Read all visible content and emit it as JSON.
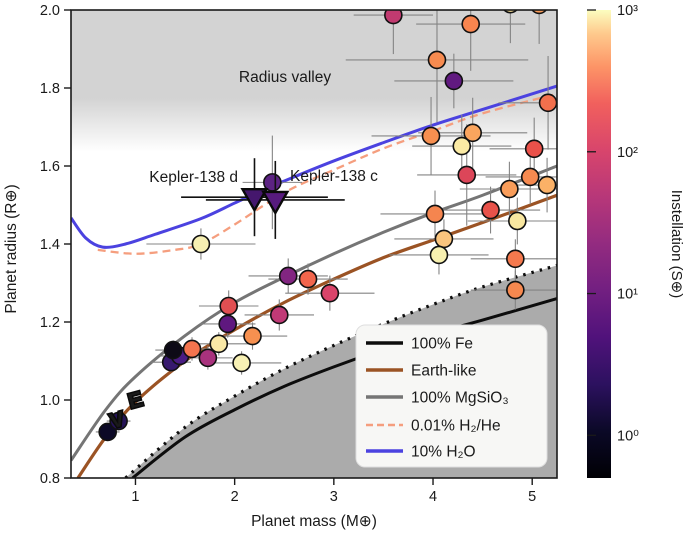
{
  "chart_data": {
    "type": "scatter",
    "title": "",
    "xlabel": "Planet mass (M⊕)",
    "ylabel": "Planet radius (R⊕)",
    "xlim": [
      0.35,
      5.25
    ],
    "ylim": [
      0.8,
      2.0
    ],
    "x_ticks": [
      1,
      2,
      3,
      4,
      5
    ],
    "x_tick_labels": [
      "1",
      "2",
      "3",
      "4",
      "5"
    ],
    "y_ticks": [
      0.8,
      1.0,
      1.2,
      1.4,
      1.6,
      1.8,
      2.0
    ],
    "y_tick_labels": [
      "0.8",
      "1.0",
      "1.2",
      "1.4",
      "1.6",
      "1.8",
      "2.0"
    ],
    "grid": false,
    "annotations": [
      {
        "text": "Radius valley",
        "x": 2.5,
        "y": 1.81,
        "color": "#9e9e9e"
      },
      {
        "text": "Kepler-138 d",
        "x": 2.05,
        "y": 1.555,
        "color": "#111111"
      },
      {
        "text": "Kepler-138 c",
        "x": 2.55,
        "y": 1.555,
        "color": "#111111"
      }
    ],
    "radius_valley_band": {
      "r_top": 2.0,
      "r_solid_until": 1.72,
      "r_fade_to": 1.64,
      "color": "#d3d3d3"
    },
    "shaded_forbidden_region": {
      "note": "gray region below the dotted curve",
      "color": "#ababab"
    },
    "curves": [
      {
        "name": "100% Fe",
        "color": "#0d0d0d",
        "style": "solid",
        "width": 3,
        "points": [
          [
            0.97,
            0.8
          ],
          [
            1.5,
            0.905
          ],
          [
            2.0,
            0.975
          ],
          [
            2.5,
            1.035
          ],
          [
            3.0,
            1.085
          ],
          [
            3.5,
            1.13
          ],
          [
            4.0,
            1.17
          ],
          [
            4.5,
            1.205
          ],
          [
            5.25,
            1.26
          ]
        ]
      },
      {
        "name": "",
        "color": "#0d0d0d",
        "style": "dotted",
        "width": 3.2,
        "points": [
          [
            0.9,
            0.8
          ],
          [
            1.5,
            0.93
          ],
          [
            2.0,
            1.01
          ],
          [
            2.5,
            1.08
          ],
          [
            3.0,
            1.14
          ],
          [
            3.5,
            1.195
          ],
          [
            4.0,
            1.245
          ],
          [
            4.5,
            1.29
          ],
          [
            5.25,
            1.345
          ]
        ]
      },
      {
        "name": "100% MgSiO₃",
        "color": "#757575",
        "style": "solid",
        "width": 3,
        "points": [
          [
            0.35,
            0.845
          ],
          [
            0.7,
            0.975
          ],
          [
            1.0,
            1.06
          ],
          [
            1.5,
            1.165
          ],
          [
            2.0,
            1.25
          ],
          [
            2.5,
            1.315
          ],
          [
            3.0,
            1.375
          ],
          [
            3.5,
            1.43
          ],
          [
            4.0,
            1.48
          ],
          [
            4.5,
            1.525
          ],
          [
            5.25,
            1.6
          ]
        ]
      },
      {
        "name": "Earth-like",
        "color": "#9b5324",
        "style": "solid",
        "width": 3.2,
        "points": [
          [
            0.42,
            0.8
          ],
          [
            0.7,
            0.905
          ],
          [
            1.0,
            0.995
          ],
          [
            1.5,
            1.1
          ],
          [
            2.0,
            1.18
          ],
          [
            2.5,
            1.25
          ],
          [
            3.0,
            1.31
          ],
          [
            3.5,
            1.365
          ],
          [
            4.0,
            1.41
          ],
          [
            4.5,
            1.455
          ],
          [
            5.25,
            1.525
          ]
        ]
      },
      {
        "name": "0.01% H₂/He",
        "color": "#f59e7e",
        "style": "dashed",
        "width": 2.3,
        "points": [
          [
            0.62,
            1.385
          ],
          [
            1.0,
            1.375
          ],
          [
            1.4,
            1.385
          ],
          [
            1.66,
            1.4
          ],
          [
            2.0,
            1.45
          ],
          [
            2.3,
            1.5
          ],
          [
            2.6,
            1.545
          ],
          [
            3.0,
            1.59
          ],
          [
            3.5,
            1.645
          ],
          [
            4.0,
            1.69
          ],
          [
            4.5,
            1.735
          ],
          [
            5.25,
            1.785
          ]
        ]
      },
      {
        "name": "10% H₂O",
        "color": "#4b42e0",
        "style": "solid",
        "width": 3,
        "points": [
          [
            0.35,
            1.467
          ],
          [
            0.5,
            1.415
          ],
          [
            0.67,
            1.392
          ],
          [
            0.9,
            1.4
          ],
          [
            1.2,
            1.425
          ],
          [
            1.66,
            1.465
          ],
          [
            2.0,
            1.505
          ],
          [
            2.3,
            1.54
          ],
          [
            2.6,
            1.572
          ],
          [
            3.0,
            1.613
          ],
          [
            3.5,
            1.66
          ],
          [
            4.0,
            1.705
          ],
          [
            4.5,
            1.745
          ],
          [
            5.25,
            1.805
          ]
        ]
      }
    ],
    "legend": {
      "position": "lower right",
      "bg": "#f7f7f5",
      "items": [
        {
          "label": "100% Fe",
          "color": "#0d0d0d",
          "style": "solid"
        },
        {
          "label": "Earth-like",
          "color": "#9b5324",
          "style": "solid"
        },
        {
          "label": "100% MgSiO₃",
          "color": "#757575",
          "style": "solid"
        },
        {
          "label": "0.01% H₂/He",
          "color": "#f59e7e",
          "style": "dashed"
        },
        {
          "label": "10% H₂O",
          "color": "#4b42e0",
          "style": "solid"
        }
      ]
    },
    "points": [
      {
        "m": 0.72,
        "r": 0.918,
        "color": "#0c0926",
        "s_approx": 1,
        "xe": 0.12,
        "ye": 0.02
      },
      {
        "m": 0.83,
        "r": 0.946,
        "color": "#251357",
        "s_approx": 2,
        "xe": 0.12,
        "ye": 0.02
      },
      {
        "m": 1.36,
        "r": 1.097,
        "color": "#37196e",
        "s_approx": 4,
        "xe": 0.2,
        "ye": 0.025
      },
      {
        "m": 1.45,
        "r": 1.113,
        "color": "#4a1c82",
        "s_approx": 6,
        "xe": 0.2,
        "ye": 0.025
      },
      {
        "m": 1.38,
        "r": 1.128,
        "color": "#0d0a16",
        "s_approx": 1,
        "xe": 0.18,
        "ye": 0.025
      },
      {
        "m": 1.57,
        "r": 1.131,
        "color": "#f3744e",
        "s_approx": 230,
        "xe": 0.22,
        "ye": 0.03
      },
      {
        "m": 1.73,
        "r": 1.108,
        "color": "#a8327d",
        "s_approx": 40,
        "xe": 0.25,
        "ye": 0.03
      },
      {
        "m": 1.84,
        "r": 1.144,
        "color": "#f9e8a6",
        "s_approx": 850,
        "xe": 0.3,
        "ye": 0.03
      },
      {
        "m": 2.07,
        "r": 1.095,
        "color": "#f7f0b4",
        "s_approx": 950,
        "xe": 0.4,
        "ye": 0.03
      },
      {
        "m": 1.94,
        "r": 1.241,
        "color": "#e14f52",
        "s_approx": 150,
        "xe": 0.3,
        "ye": 0.04
      },
      {
        "m": 1.93,
        "r": 1.195,
        "color": "#5f187f",
        "s_approx": 9,
        "xe": 0.28,
        "ye": 0.035
      },
      {
        "m": 2.18,
        "r": 1.164,
        "color": "#f69050",
        "s_approx": 300,
        "xe": 0.35,
        "ye": 0.035
      },
      {
        "m": 2.45,
        "r": 1.218,
        "color": "#c03a76",
        "s_approx": 60,
        "xe": 0.35,
        "ye": 0.04
      },
      {
        "m": 2.54,
        "r": 1.318,
        "color": "#822581",
        "s_approx": 20,
        "xe": 0.4,
        "ye": 0.045
      },
      {
        "m": 2.74,
        "r": 1.31,
        "color": "#f2654c",
        "s_approx": 200,
        "xe": 0.4,
        "ye": 0.04
      },
      {
        "m": 2.96,
        "r": 1.274,
        "color": "#d9446a",
        "s_approx": 110,
        "xe": 0.45,
        "ye": 0.045
      },
      {
        "m": 1.66,
        "r": 1.4,
        "color": "#f6efb2",
        "s_approx": 900,
        "xe": 0.55,
        "ye": 0.04
      },
      {
        "m": 2.38,
        "r": 1.558,
        "color": "#5c2383",
        "s_approx": 9,
        "xe": 0.3,
        "ye": 0.12
      },
      {
        "m": 3.6,
        "r": 1.987,
        "color": "#c13a70",
        "s_approx": 60,
        "xe": 0.4,
        "ye": 0.1
      },
      {
        "m": 4.38,
        "r": 1.964,
        "color": "#f8854f",
        "s_approx": 270,
        "xe": 0.55,
        "ye": 0.12
      },
      {
        "m": 4.78,
        "r": 2.015,
        "color": "#fbe298",
        "s_approx": 800,
        "xe": 0.5,
        "ye": 0.1
      },
      {
        "m": 5.07,
        "r": 2.013,
        "color": "#f99c5b",
        "s_approx": 380,
        "xe": 0.45,
        "ye": 0.1
      },
      {
        "m": 4.04,
        "r": 1.872,
        "color": "#f78b50",
        "s_approx": 280,
        "xe": 0.92,
        "ye": 0.16
      },
      {
        "m": 4.21,
        "r": 1.818,
        "color": "#611a80",
        "s_approx": 9,
        "xe": 0.6,
        "ye": 0.07
      },
      {
        "m": 5.16,
        "r": 1.762,
        "color": "#f3704d",
        "s_approx": 220,
        "xe": 0.5,
        "ye": 0.12
      },
      {
        "m": 3.98,
        "r": 1.677,
        "color": "#f68f50",
        "s_approx": 290,
        "xe": 0.6,
        "ye": 0.1
      },
      {
        "m": 4.4,
        "r": 1.685,
        "color": "#faa55e",
        "s_approx": 420,
        "xe": 0.55,
        "ye": 0.09
      },
      {
        "m": 4.29,
        "r": 1.651,
        "color": "#faeaa4",
        "s_approx": 850,
        "xe": 0.5,
        "ye": 0.08
      },
      {
        "m": 5.02,
        "r": 1.644,
        "color": "#ea514a",
        "s_approx": 160,
        "xe": 0.45,
        "ye": 0.08
      },
      {
        "m": 4.34,
        "r": 1.577,
        "color": "#dc4659",
        "s_approx": 120,
        "xe": 0.5,
        "ye": 0.13
      },
      {
        "m": 4.98,
        "r": 1.572,
        "color": "#f68a50",
        "s_approx": 280,
        "xe": 0.45,
        "ye": 0.07
      },
      {
        "m": 4.77,
        "r": 1.541,
        "color": "#f99d5a",
        "s_approx": 380,
        "xe": 0.5,
        "ye": 0.07
      },
      {
        "m": 5.15,
        "r": 1.551,
        "color": "#fbb167",
        "s_approx": 500,
        "xe": 0.4,
        "ye": 0.07
      },
      {
        "m": 4.02,
        "r": 1.477,
        "color": "#f5854f",
        "s_approx": 260,
        "xe": 0.55,
        "ye": 0.06
      },
      {
        "m": 4.58,
        "r": 1.487,
        "color": "#e8524a",
        "s_approx": 150,
        "xe": 0.5,
        "ye": 0.06
      },
      {
        "m": 4.85,
        "r": 1.459,
        "color": "#f9e7a0",
        "s_approx": 800,
        "xe": 0.5,
        "ye": 0.06
      },
      {
        "m": 4.11,
        "r": 1.413,
        "color": "#fac57e",
        "s_approx": 600,
        "xe": 0.5,
        "ye": 0.05
      },
      {
        "m": 4.06,
        "r": 1.372,
        "color": "#f7f0b0",
        "s_approx": 950,
        "xe": 0.5,
        "ye": 0.05
      },
      {
        "m": 4.83,
        "r": 1.362,
        "color": "#f4794e",
        "s_approx": 230,
        "xe": 0.45,
        "ye": 0.05
      },
      {
        "m": 4.83,
        "r": 1.282,
        "color": "#f6884f",
        "s_approx": 280,
        "xe": 0.45,
        "ye": 0.05
      }
    ],
    "kepler_markers": [
      {
        "name": "Kepler-138 d",
        "marker": "triangle-down",
        "m": 2.2,
        "r": 1.52,
        "color": "#45176d",
        "xe": 0.74,
        "ye": 0.1
      },
      {
        "name": "Kepler-138 c",
        "marker": "triangle-down",
        "m": 2.41,
        "r": 1.513,
        "color": "#571b7e",
        "xe": 0.7,
        "ye": 0.1
      }
    ],
    "solar_system_markers": [
      {
        "letter": "V",
        "m": 0.815,
        "r": 0.949
      },
      {
        "letter": "E",
        "m": 1.0,
        "r": 1.0
      }
    ],
    "colorbar": {
      "label": "Instellation (S⊕)",
      "scale": "log",
      "colormap": "magma",
      "range": [
        0.5,
        1000
      ],
      "tick_values": [
        1,
        10,
        100,
        1000
      ],
      "tick_labels": [
        "10⁰",
        "10¹",
        "10²",
        "10³"
      ],
      "gradient": [
        [
          0.0,
          "#000004"
        ],
        [
          0.1,
          "#0b0927"
        ],
        [
          0.2,
          "#2c115f"
        ],
        [
          0.3,
          "#50127b"
        ],
        [
          0.4,
          "#721f81"
        ],
        [
          0.5,
          "#932b80"
        ],
        [
          0.6,
          "#b73779"
        ],
        [
          0.7,
          "#d8456c"
        ],
        [
          0.8,
          "#f1605d"
        ],
        [
          0.88,
          "#fd9567"
        ],
        [
          0.95,
          "#feca8d"
        ],
        [
          1.0,
          "#fcfdbf"
        ]
      ]
    }
  }
}
